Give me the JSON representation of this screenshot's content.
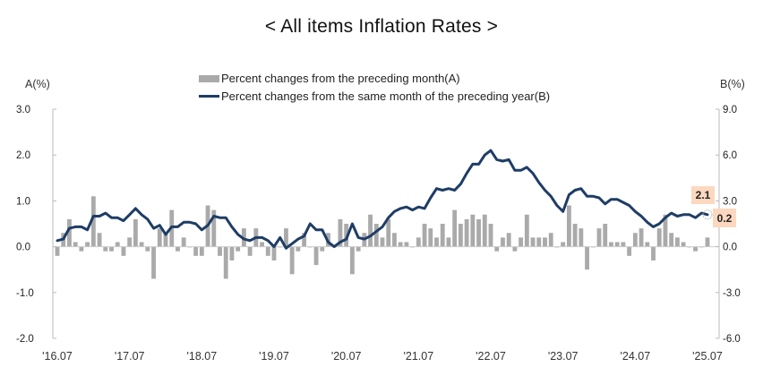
{
  "chart_data": {
    "type": "bar+line",
    "title": "< All items Inflation Rates >",
    "left_axis": {
      "label": "A(%)",
      "ylim": [
        -2.0,
        3.0
      ],
      "ticks": [
        "3.0",
        "2.0",
        "1.0",
        "0.0",
        "-1.0",
        "-2.0"
      ],
      "tick_values": [
        3.0,
        2.0,
        1.0,
        0.0,
        -1.0,
        -2.0
      ]
    },
    "right_axis": {
      "label": "B(%)",
      "ylim": [
        -6.0,
        9.0
      ],
      "ticks": [
        "9.0",
        "6.0",
        "3.0",
        "0.0",
        "-3.0",
        "-6.0"
      ],
      "tick_values": [
        9.0,
        6.0,
        3.0,
        0.0,
        -3.0,
        -6.0
      ]
    },
    "x_tick_labels": [
      "'16.07",
      "'17.07",
      "'18.07",
      "'19.07",
      "'20.07",
      "'21.07",
      "'22.07",
      "'23.07",
      "'24.07",
      "'25.07"
    ],
    "x_tick_month_index": [
      0,
      12,
      24,
      36,
      48,
      60,
      72,
      84,
      96,
      108
    ],
    "legend": [
      {
        "name": "Percent changes from the preceding month(A)",
        "type": "bar",
        "color": "#aaaaaa"
      },
      {
        "name": "Percent changes from the same month of the preceding year(B)",
        "type": "line",
        "color": "#1e3d66"
      }
    ],
    "series": [
      {
        "name": "Percent changes from the preceding month(A)",
        "axis": "left",
        "values": [
          -0.2,
          0.3,
          0.6,
          0.1,
          -0.1,
          0.1,
          1.1,
          0.3,
          -0.1,
          -0.1,
          0.1,
          -0.2,
          0.2,
          0.6,
          0.1,
          -0.1,
          -0.7,
          0.4,
          0.3,
          0.8,
          -0.1,
          0.2,
          0.0,
          -0.2,
          -0.2,
          0.9,
          0.8,
          -0.2,
          -0.7,
          -0.3,
          -0.1,
          0.4,
          -0.2,
          0.4,
          0.1,
          -0.2,
          -0.3,
          0.0,
          0.4,
          -0.6,
          -0.1,
          0.3,
          0.0,
          -0.4,
          -0.1,
          0.3,
          0.0,
          0.6,
          0.5,
          -0.6,
          -0.1,
          0.3,
          0.7,
          0.5,
          0.2,
          0.6,
          0.3,
          0.1,
          0.1,
          0.0,
          0.2,
          0.5,
          0.4,
          0.2,
          0.5,
          0.2,
          0.8,
          0.5,
          0.6,
          0.7,
          0.6,
          0.7,
          0.5,
          -0.1,
          0.2,
          0.3,
          -0.1,
          0.2,
          0.7,
          0.2,
          0.2,
          0.2,
          0.3,
          0.0,
          0.1,
          0.9,
          0.5,
          0.4,
          -0.5,
          0.0,
          0.4,
          0.5,
          0.1,
          0.1,
          0.1,
          -0.2,
          0.3,
          0.4,
          0.1,
          -0.3,
          0.4,
          0.7,
          0.3,
          0.2,
          0.1,
          0.0,
          -0.1,
          0.0,
          0.2
        ],
        "display_label": "0.2"
      },
      {
        "name": "Percent changes from the same month of the preceding year(B)",
        "axis": "right",
        "values": [
          0.4,
          0.5,
          1.2,
          1.3,
          1.3,
          1.1,
          2.0,
          2.0,
          2.2,
          1.9,
          1.9,
          1.7,
          2.1,
          2.5,
          2.1,
          1.8,
          1.2,
          1.4,
          0.8,
          1.3,
          1.3,
          1.6,
          1.6,
          1.5,
          1.1,
          1.4,
          2.0,
          1.9,
          1.9,
          1.3,
          0.8,
          0.5,
          0.4,
          0.6,
          0.6,
          0.4,
          0.0,
          0.6,
          -0.1,
          0.2,
          0.5,
          0.7,
          1.5,
          1.1,
          1.1,
          0.3,
          0.0,
          0.3,
          0.5,
          1.5,
          0.6,
          0.5,
          0.7,
          1.0,
          1.3,
          1.9,
          2.3,
          2.5,
          2.6,
          2.4,
          2.6,
          2.5,
          3.2,
          3.8,
          3.7,
          3.8,
          3.7,
          4.1,
          4.8,
          5.4,
          5.4,
          6.0,
          6.3,
          5.7,
          5.6,
          5.7,
          5.0,
          5.0,
          5.2,
          4.8,
          4.2,
          3.7,
          3.3,
          2.7,
          2.3,
          3.4,
          3.7,
          3.8,
          3.3,
          3.3,
          3.2,
          2.8,
          3.1,
          3.1,
          2.9,
          2.7,
          2.3,
          2.0,
          1.6,
          1.3,
          1.5,
          1.9,
          2.2,
          2.0,
          2.1,
          2.1,
          1.9,
          2.2,
          2.1
        ],
        "display_label": "2.1"
      }
    ],
    "callouts": [
      {
        "text": "2.1",
        "series": "B",
        "index": 108
      },
      {
        "text": "0.2",
        "series": "A",
        "index": 108
      }
    ]
  }
}
